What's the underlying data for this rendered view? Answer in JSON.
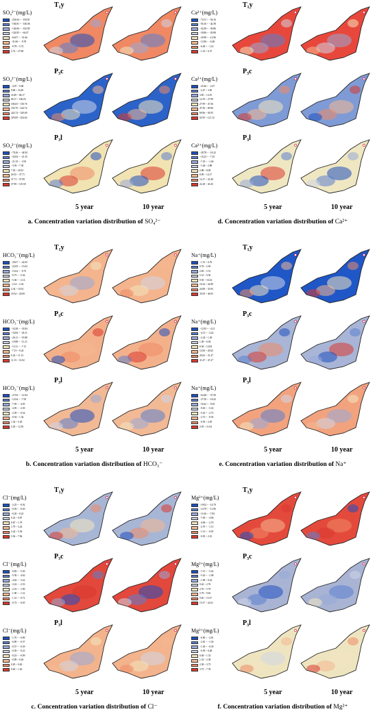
{
  "panels": [
    {
      "id": "a",
      "caption": "a. Concentration variation distribution of",
      "caption_ion": "SO₄²⁻",
      "ion_label": "SO₄²⁻(mg/L)",
      "years": [
        "5 year",
        "10 year"
      ],
      "rows": [
        {
          "layer": "T₁y",
          "base": "#f08863",
          "legend": [
            "−254.64 ~ −194.81",
            "−194.81 ~ −146.06",
            "−146.06 ~ −102.85",
            "−102.85 ~ −64.07",
            "−64.07 ~ −31.66",
            "−31.66 ~ −9.78",
            "−9.78 ~ 5.72",
            "5.72 ~ 27.08"
          ]
        },
        {
          "layer": "P₃c",
          "base": "#2c63c9",
          "legend": [
            "−4.07 ~ 9.68",
            "9.68 ~ 33.49",
            "33.49 ~ 68.17",
            "68.17 ~ 106.03",
            "106.03 ~ 150.76",
            "150.76 ~ 224.74",
            "224.74 ~ 329.69",
            "329.69 ~ 434.64"
          ]
        },
        {
          "layer": "P₃l",
          "base": "#f1e3b2",
          "legend": [
            "−70.26 ~ −44.94",
            "−44.94 ~ −21.35",
            "−21.35 ~ −3.93",
            "−3.93 ~ 7.30",
            "7.30 ~ 20.35",
            "20.35 ~ 37.71",
            "37.71 ~ 57.99",
            "57.99 ~ 119.59"
          ]
        }
      ]
    },
    {
      "id": "d",
      "caption": "d. Concentration variation distribution of",
      "caption_ion": "Ca²⁺",
      "ion_label": "Ca²⁺(mg/L)",
      "years": [
        "5 year",
        "10 year"
      ],
      "rows": [
        {
          "layer": "T₁y",
          "base": "#e8483b",
          "legend": [
            "−72.51 ~ −56.16",
            "−56.16 ~ −42.58",
            "−42.58 ~ −30.86",
            "−30.86 ~ −20.98",
            "−20.98 ~ −12.96",
            "−12.96 ~ −6.48",
            "−6.48 ~ −1.23",
            "−1.23 ~ 6.37"
          ]
        },
        {
          "layer": "P₃c",
          "base": "#7f9bd6",
          "legend": [
            "−25.46 ~ −2.47",
            "−2.47 ~ 3.85",
            "3.85 ~ 14.19",
            "14.19 ~ 27.99",
            "27.99 ~ 47.56",
            "47.56 ~ 69.96",
            "69.96 ~ 92.95",
            "92.95 ~ 121.12"
          ]
        },
        {
          "layer": "P₃l",
          "base": "#efe7c2",
          "legend": [
            "−28.78 ~ −16.22",
            "−16.22 ~ −7.25",
            "−7.25 ~ −1.46",
            "−1.46 ~ 2.88",
            "2.88 ~ 8.09",
            "8.09 ~ 14.17",
            "14.17 ~ 22.28",
            "22.28 ~ 45.45"
          ]
        }
      ]
    },
    {
      "id": "b",
      "caption": "b. Concentration variation distribution of",
      "caption_ion": "HCO₃⁻",
      "ion_label": "HCO₃⁻(mg/L)",
      "years": [
        "5 year",
        "10 year"
      ],
      "rows": [
        {
          "layer": "T₁y",
          "base": "#f4b48d",
          "legend": [
            "−29.07 ~ −22.05",
            "−22.05 ~ −15.02",
            "−15.02 ~ −9.75",
            "−9.75 ~ −5.36",
            "−5.36 ~ −2.14",
            "−2.14 ~ 2.34",
            "2.34 ~ 10.54",
            "10.54 ~ 20.69"
          ]
        },
        {
          "layer": "P₃c",
          "base": "#f3b18b",
          "legend": [
            "−34.38 ~ −33.84",
            "−33.84 ~ −26.11",
            "−26.11 ~ −19.88",
            "−19.88 ~ −13.11",
            "−13.11 ~ −7.13",
            "−7.13 ~ 0.24",
            "0.24 ~ 11.13",
            "11.13 ~ 31.02"
          ]
        },
        {
          "layer": "P₃l",
          "base": "#f2b995",
          "legend": [
            "−27.82 ~ −12.94",
            "−12.94 ~ −7.95",
            "−7.95 ~ −4.95",
            "−4.95 ~ −2.59",
            "−2.59 ~ −0.54",
            "−0.54 ~ 1.34",
            "1.34 ~ 5.29",
            "5.29 ~ 12.39"
          ]
        }
      ]
    },
    {
      "id": "e",
      "caption": "e. Concentration variation distribution of",
      "caption_ion": "Na⁺",
      "ion_label": "Na⁺(mg/L)",
      "years": [
        "5 year",
        "10 year"
      ],
      "rows": [
        {
          "layer": "T₁y",
          "base": "#1f57c7",
          "legend": [
            "−1.51 ~ 0.76",
            "0.76 ~ 2.83",
            "2.83 ~ 5.51",
            "5.51 ~ 9.50",
            "9.50 ~ 16.34",
            "16.34 ~ 24.89",
            "24.89 ~ 35.93",
            "35.93 ~ 46.93"
          ]
        },
        {
          "layer": "P₃c",
          "base": "#a8b5d6",
          "legend": [
            "−12.95 ~ −4.13",
            "−4.13 ~ −2.24",
            "−2.24 ~ 1.28",
            "1.28 ~ 6.94",
            "6.94 ~ 12.84",
            "12.84 ~ 20.62",
            "20.62 ~ 31.47",
            "31.47 ~ 47.27"
          ]
        },
        {
          "layer": "P₃l",
          "base": "#f2a37e",
          "legend": [
            "−64.48 ~ −37.50",
            "−37.50 ~ −18.42",
            "−18.42 ~ −9.03",
            "−9.03 ~ −5.43",
            "−5.43 ~ −2.73",
            "−2.73 ~ −0.93",
            "−0.93 ~ 2.95",
            "2.95 ~ 11.94"
          ]
        }
      ]
    },
    {
      "id": "c",
      "caption": "c. Concentration variation distribution of",
      "caption_ion": "Cl⁻",
      "ion_label": "Cl⁻(mg/L)",
      "years": [
        "5 year",
        "10 year"
      ],
      "rows": [
        {
          "layer": "T₁y",
          "base": "#a8b6d6",
          "legend": [
            "−2.25 ~ −0.92",
            "−0.92 ~ −0.20",
            "−0.20 ~ 0.23",
            "0.23 ~ 0.87",
            "0.87 ~ 1.79",
            "1.79 ~ 3.24",
            "3.24 ~ 5.36",
            "5.36 ~ 7.96"
          ]
        },
        {
          "layer": "P₃c",
          "base": "#e2483b",
          "legend": [
            "−9.83 ~ −5.50",
            "−5.50 ~ −4.62",
            "−4.62 ~ −3.22",
            "−3.22 ~ −2.53",
            "−2.53 ~ −1.90",
            "−1.90 ~ −1.31",
            "−1.31 ~ −0.72",
            "−0.72 ~ −0.05"
          ]
        },
        {
          "layer": "P₃l",
          "base": "#f3b38c",
          "legend": [
            "−1.70 ~ −0.89",
            "−0.89 ~ −0.57",
            "−0.57 ~ −0.39",
            "−0.39 ~ −0.23",
            "−0.23 ~ −0.09",
            "−0.09 ~ 0.20",
            "0.20 ~ 0.40",
            "0.40 ~ 1.20"
          ]
        }
      ]
    },
    {
      "id": "f",
      "caption": "f. Concentration variation distribution of",
      "caption_ion": "Mg²⁺",
      "ion_label": "Mg²⁺(mg/L)",
      "years": [
        "5 year",
        "10 year"
      ],
      "rows": [
        {
          "layer": "T₁y",
          "base": "#e44a3c",
          "legend": [
            "−19.02 ~ −14.79",
            "−14.79 ~ −11.06",
            "−11.06 ~ −7.83",
            "−7.83 ~ −4.96",
            "−4.96 ~ −2.70",
            "−2.70 ~ −1.13",
            "−1.13 ~ −0.05",
            "−0.05 ~ 2.10"
          ]
        },
        {
          "layer": "P₃c",
          "base": "#a9b4d4",
          "legend": [
            "−7.15 ~ −5.42",
            "−5.42 ~ −1.08",
            "−1.08 ~ 0.42",
            "0.42 ~ 2.76",
            "2.76 ~ 5.79",
            "5.79 ~ 9.65",
            "9.65 ~ 15.37",
            "15.37 ~ 22.61"
          ]
        },
        {
          "layer": "P₃l",
          "base": "#eee5c0",
          "legend": [
            "−6.90 ~ −2.81",
            "−2.81 ~ −1.30",
            "−1.30 ~ −0.39",
            "−0.39 ~ 0.48",
            "0.48 ~ 1.33",
            "1.33 ~ 2.38",
            "2.38 ~ 3.73",
            "3.73 ~ 7.78"
          ]
        }
      ]
    }
  ],
  "legend_colors": [
    "#1f4fbf",
    "#5b7fd0",
    "#98aad8",
    "#cfd6e6",
    "#f2e6c0",
    "#f4b892",
    "#ee8a66",
    "#d8392f"
  ],
  "accent_colors": {
    "blue": "#2c63c9",
    "red": "#e2483b",
    "cream": "#f1e3b2"
  }
}
